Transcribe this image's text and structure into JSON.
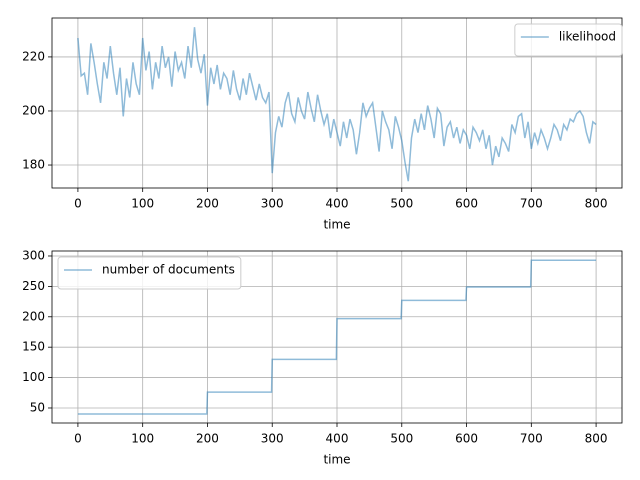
{
  "chart_data": [
    {
      "type": "line",
      "xlabel": "time",
      "xlim": [
        -40,
        840
      ],
      "ylim": [
        171.5,
        234.4
      ],
      "xticks": [
        0,
        100,
        200,
        300,
        400,
        500,
        600,
        700,
        800
      ],
      "yticks": [
        180,
        200,
        220
      ],
      "grid": true,
      "legend": "upper right",
      "x": [
        0,
        5,
        10,
        15,
        20,
        25,
        30,
        35,
        40,
        45,
        50,
        55,
        60,
        65,
        70,
        75,
        80,
        85,
        90,
        95,
        100,
        105,
        110,
        115,
        120,
        125,
        130,
        135,
        140,
        145,
        150,
        155,
        160,
        165,
        170,
        175,
        180,
        185,
        190,
        195,
        200,
        205,
        210,
        215,
        220,
        225,
        230,
        235,
        240,
        245,
        250,
        255,
        260,
        265,
        270,
        275,
        280,
        285,
        290,
        295,
        300,
        305,
        310,
        315,
        320,
        325,
        330,
        335,
        340,
        345,
        350,
        355,
        360,
        365,
        370,
        375,
        380,
        385,
        390,
        395,
        400,
        405,
        410,
        415,
        420,
        425,
        430,
        435,
        440,
        445,
        450,
        455,
        460,
        465,
        470,
        475,
        480,
        485,
        490,
        495,
        500,
        505,
        510,
        515,
        520,
        525,
        530,
        535,
        540,
        545,
        550,
        555,
        560,
        565,
        570,
        575,
        580,
        585,
        590,
        595,
        600,
        605,
        610,
        615,
        620,
        625,
        630,
        635,
        640,
        645,
        650,
        655,
        660,
        665,
        670,
        675,
        680,
        685,
        690,
        695,
        700,
        705,
        710,
        715,
        720,
        725,
        730,
        735,
        740,
        745,
        750,
        755,
        760,
        765,
        770,
        775,
        780,
        785,
        790,
        795,
        800
      ],
      "series": [
        {
          "name": "likelihood",
          "color": "#1f77b4",
          "values": [
            227,
            213,
            214,
            206,
            225,
            218,
            210,
            203,
            218,
            212,
            224,
            214,
            206,
            216,
            198,
            212,
            205,
            218,
            210,
            206,
            227,
            215,
            222,
            208,
            218,
            212,
            224,
            216,
            220,
            209,
            222,
            215,
            218,
            212,
            224,
            216,
            231,
            219,
            214,
            221,
            202,
            216,
            210,
            217,
            208,
            214,
            212,
            206,
            215,
            208,
            204,
            212,
            206,
            214,
            209,
            204,
            210,
            205,
            203,
            207,
            177,
            192,
            198,
            194,
            203,
            207,
            199,
            196,
            205,
            200,
            197,
            207,
            201,
            196,
            206,
            200,
            195,
            199,
            190,
            197,
            192,
            187,
            196,
            190,
            197,
            193,
            184,
            192,
            203,
            198,
            201,
            203,
            194,
            185,
            200,
            196,
            193,
            186,
            198,
            194,
            189,
            181,
            174,
            190,
            197,
            192,
            199,
            193,
            202,
            197,
            190,
            201,
            199,
            187,
            194,
            196,
            190,
            194,
            188,
            193,
            191,
            186,
            194,
            192,
            189,
            193,
            186,
            191,
            180,
            187,
            183,
            190,
            188,
            185,
            195,
            192,
            198,
            199,
            190,
            196,
            186,
            192,
            188,
            193,
            190,
            186,
            190,
            195,
            193,
            189,
            195,
            193,
            197,
            196,
            199,
            200,
            198,
            192,
            188,
            196,
            195
          ]
        }
      ]
    },
    {
      "type": "line",
      "xlabel": "time",
      "xlim": [
        -40,
        840
      ],
      "ylim": [
        25.3,
        308.2
      ],
      "xticks": [
        0,
        100,
        200,
        300,
        400,
        500,
        600,
        700,
        800
      ],
      "yticks": [
        50,
        100,
        150,
        200,
        250,
        300
      ],
      "grid": true,
      "legend": "upper left",
      "x": [
        0,
        199,
        200,
        299,
        300,
        399,
        400,
        499,
        500,
        599,
        600,
        699,
        700,
        800
      ],
      "series": [
        {
          "name": "number of documents",
          "color": "#1f77b4",
          "values": [
            40,
            40,
            76,
            76,
            130,
            130,
            197,
            197,
            227,
            227,
            249,
            249,
            293,
            293
          ]
        }
      ]
    }
  ]
}
